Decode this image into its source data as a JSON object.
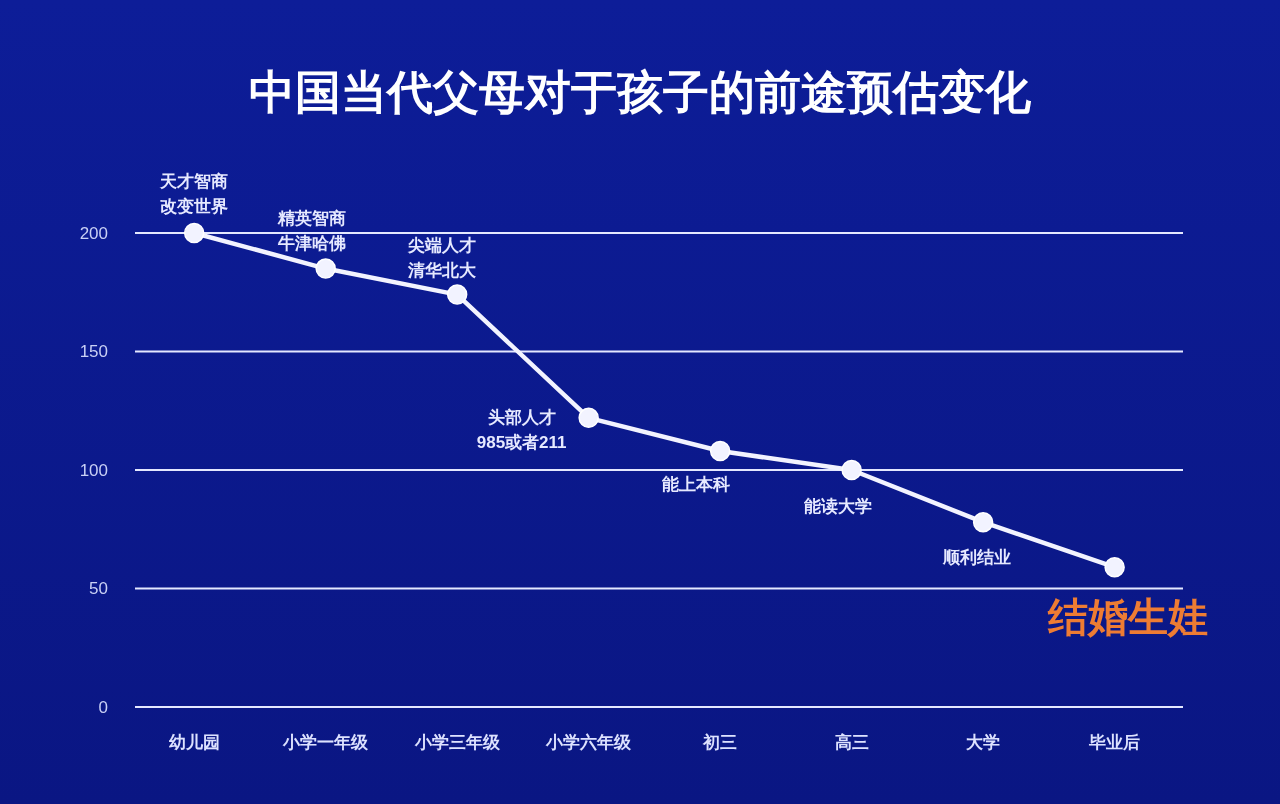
{
  "chart_data": {
    "type": "line",
    "title": "中国当代父母对于孩子的前途预估变化",
    "categories": [
      "幼儿园",
      "小学一年级",
      "小学三年级",
      "小学六年级",
      "初三",
      "高三",
      "大学",
      "毕业后"
    ],
    "values": [
      200,
      185,
      174,
      122,
      108,
      100,
      78,
      59
    ],
    "color": "#f2f3ff",
    "ylim": [
      0,
      200
    ],
    "yticks": [
      0,
      50,
      100,
      150,
      200
    ],
    "grid": "y",
    "marker": "circle",
    "line_style": "solid",
    "annotations": [
      {
        "text": "天才智商改变世界",
        "x": "幼儿园",
        "y": 200
      },
      {
        "text": "精英智商牛津哈佛",
        "x": "小学一年级",
        "y": 185
      },
      {
        "text": "尖端人才清华北大",
        "x": "小学三年级",
        "y": 174
      },
      {
        "text": "头部人才985或者211",
        "x": "小学六年级",
        "y": 122
      },
      {
        "text": "能上本科",
        "x": "初三",
        "y": 108
      },
      {
        "text": "能读大学",
        "x": "高三",
        "y": 100
      },
      {
        "text": "顺利结业",
        "x": "大学",
        "y": 78
      },
      {
        "text": "结婚生娃",
        "x": "毕业后",
        "y": 59
      }
    ]
  }
}
